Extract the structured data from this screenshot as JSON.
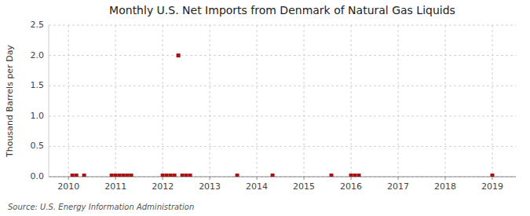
{
  "chart_data": {
    "type": "scatter",
    "title": "Monthly U.S. Net Imports from Denmark of Natural Gas Liquids",
    "y_label": "Thousand Barrels per Day",
    "annotations": [
      "Source: U.S. Energy Information Administration"
    ],
    "x": [
      2010.083,
      2010.167,
      2010.333,
      2010.917,
      2011.0,
      2011.083,
      2011.167,
      2011.25,
      2011.333,
      2012.0,
      2012.083,
      2012.167,
      2012.25,
      2012.333,
      2012.417,
      2012.5,
      2012.583,
      2013.583,
      2014.333,
      2015.583,
      2016.0,
      2016.083,
      2016.167,
      2019.0
    ],
    "values": [
      0.02,
      0.02,
      0.02,
      0.02,
      0.02,
      0.02,
      0.02,
      0.02,
      0.02,
      0.02,
      0.02,
      0.02,
      0.02,
      2.0,
      0.02,
      0.02,
      0.02,
      0.02,
      0.02,
      0.02,
      0.02,
      0.02,
      0.02,
      0.02
    ],
    "color": "#aa1111",
    "marker": "square",
    "xlim": [
      2009.58,
      2019.5
    ],
    "xticks": [
      2010,
      2011,
      2012,
      2013,
      2014,
      2015,
      2016,
      2017,
      2018,
      2019
    ],
    "ylim": [
      0.0,
      2.5
    ],
    "yticks": [
      {
        "value": 0.0,
        "label": "0.0"
      },
      0.5,
      {
        "value": 1.0,
        "label": "1.0"
      },
      1.5,
      {
        "value": 2.0,
        "label": "2.0"
      },
      2.5
    ],
    "grid": true
  }
}
